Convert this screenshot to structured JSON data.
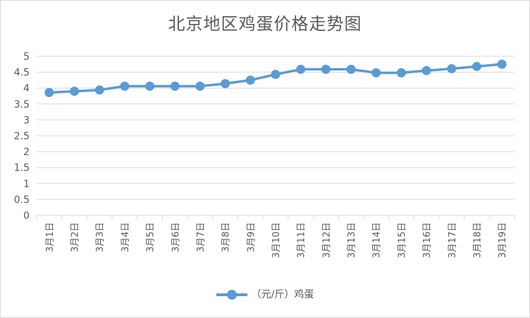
{
  "colors": {
    "series": "#5b9bd5",
    "grid": "#d9d9d9",
    "text": "#595959"
  },
  "chart_data": {
    "type": "line",
    "title": "北京地区鸡蛋价格走势图",
    "categories": [
      "3月1日",
      "3月2日",
      "3月3日",
      "3月4日",
      "3月5日",
      "3月6日",
      "3月7日",
      "3月8日",
      "3月9日",
      "3月10日",
      "3月11日",
      "3月12日",
      "3月13日",
      "3月14日",
      "3月15日",
      "3月16日",
      "3月17日",
      "3月18日",
      "3月19日"
    ],
    "series": [
      {
        "name": "（元/斤）鸡蛋",
        "values": [
          3.86,
          3.9,
          3.94,
          4.06,
          4.06,
          4.06,
          4.06,
          4.14,
          4.25,
          4.43,
          4.59,
          4.59,
          4.59,
          4.48,
          4.48,
          4.55,
          4.61,
          4.68,
          4.75
        ]
      }
    ],
    "ylim": [
      0,
      5
    ],
    "yticks": [
      "0",
      "0.5",
      "1",
      "1.5",
      "2",
      "2.5",
      "3",
      "3.5",
      "4",
      "4.5",
      "5"
    ],
    "grid": true,
    "legend_position": "bottom"
  }
}
